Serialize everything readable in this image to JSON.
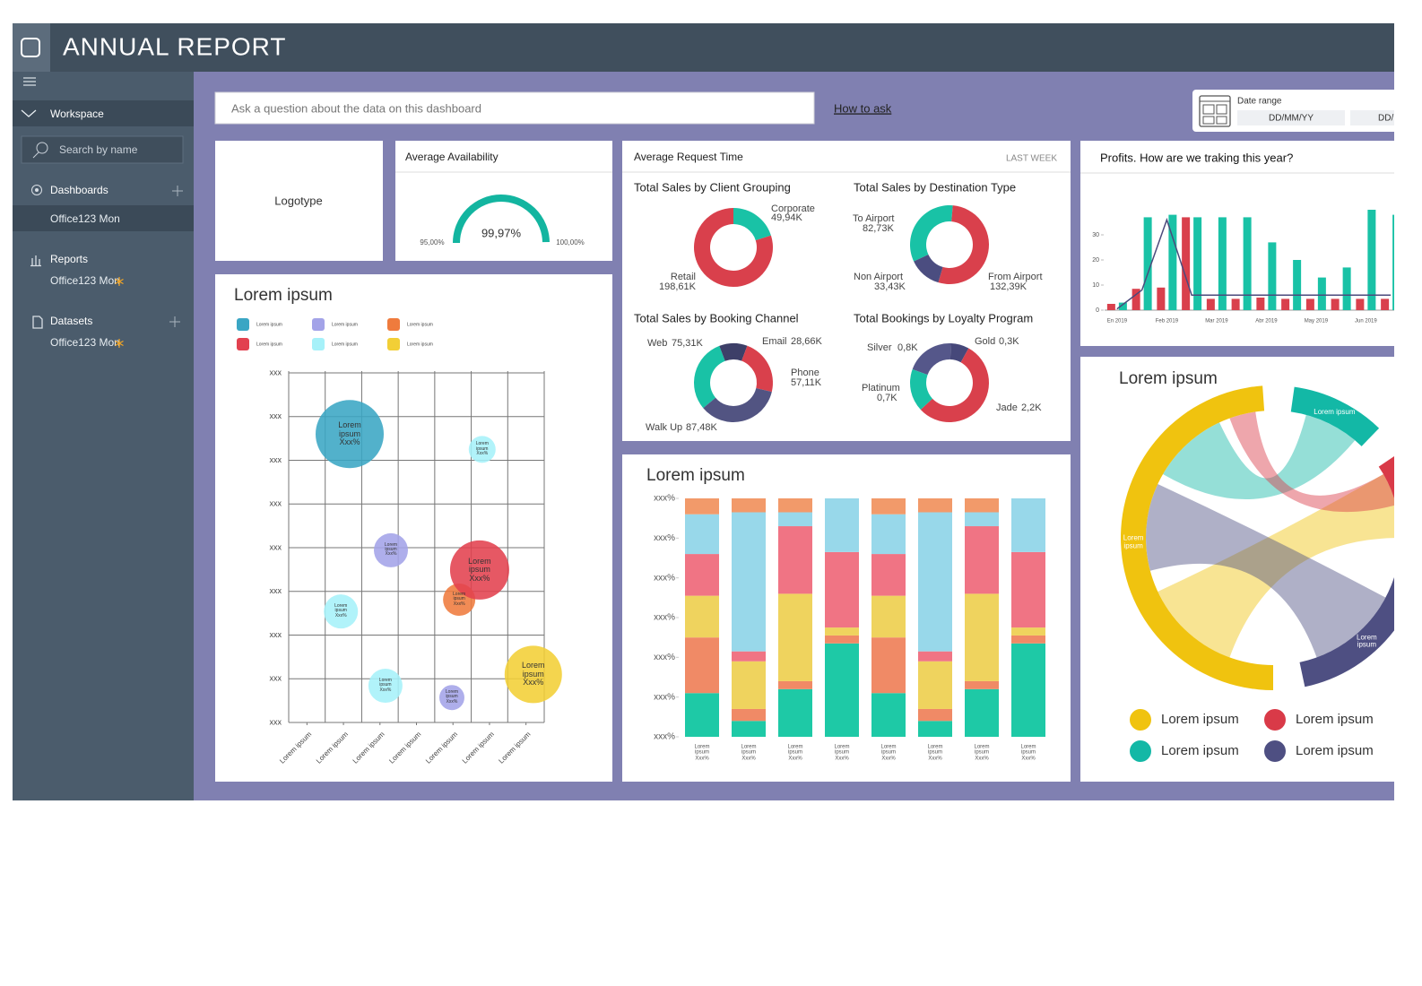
{
  "header": {
    "title": "ANNUAL REPORT"
  },
  "sidebar": {
    "section": "Workspace",
    "search_placeholder": "Search by name",
    "groups": [
      {
        "label": "Dashboards",
        "items": [
          "Office123 Mon"
        ]
      },
      {
        "label": "Reports",
        "items": [
          "Office123 Mon"
        ]
      },
      {
        "label": "Datasets",
        "items": [
          "Office123 Mon"
        ]
      }
    ]
  },
  "toolbar": {
    "question_placeholder": "Ask a question about the data on this dashboard",
    "help_link": "How to ask",
    "date_range": {
      "label": "Date range",
      "fields": [
        "DD/MM/YY",
        "DD/MM/YY"
      ]
    }
  },
  "logo_card": {
    "label": "Logotype"
  },
  "availability": {
    "type": "gauge",
    "title": "Average Availability",
    "value": 99.97,
    "value_label": "99,97%",
    "lim": [
      95,
      100
    ],
    "ticks": [
      {
        "value": 95,
        "label": "95,00%"
      },
      {
        "value": 100,
        "label": "100,00%"
      }
    ],
    "color": "#13b5a0"
  },
  "request_time": {
    "title": "Average Request Time",
    "period": "LAST WEEK",
    "charts": [
      {
        "type": "donut",
        "title": "Total Sales by Client Grouping",
        "categories": [
          "Corporate",
          "Retail"
        ],
        "values": [
          49.94,
          198.61
        ],
        "value_labels": [
          "49,94K",
          "198,61K"
        ],
        "colors": [
          "#19c2a6",
          "#d9404c"
        ]
      },
      {
        "type": "donut",
        "title": "Total Sales by Destination Type",
        "categories": [
          "To Airport",
          "From Airport",
          "Non Airport"
        ],
        "values": [
          82.73,
          132.39,
          33.43
        ],
        "value_labels": [
          "82,73K",
          "132,39K",
          "33,43K"
        ],
        "colors": [
          "#19c2a6",
          "#d9404c",
          "#4b4d80"
        ]
      },
      {
        "type": "donut",
        "title": "Total Sales by Booking Channel",
        "categories": [
          "Web",
          "Email",
          "Phone",
          "Walk Up"
        ],
        "values": [
          75.31,
          28.66,
          57.11,
          87.48
        ],
        "value_labels": [
          "75,31K",
          "28,66K",
          "57,11K",
          "87,48K"
        ],
        "colors": [
          "#19c2a6",
          "#3d3f68",
          "#d9404c",
          "#525482"
        ]
      },
      {
        "type": "donut",
        "title": "Total Bookings by Loyalty Program",
        "categories": [
          "Silver",
          "Gold",
          "Jade",
          "Platinum"
        ],
        "values": [
          0.8,
          0.3,
          2.2,
          0.7
        ],
        "value_labels": [
          "0,8K",
          "0,3K",
          "2,2K",
          "0,7K"
        ],
        "colors": [
          "#55578a",
          "#46487a",
          "#d9404c",
          "#19c2a6"
        ]
      }
    ]
  },
  "profits": {
    "type": "bar",
    "title": "Profits. How are we traking this year?",
    "categories": [
      "En 2019",
      null,
      "Feb 2019",
      null,
      "Mar 2019",
      null,
      "Abr 2019",
      null,
      "May 2019",
      null,
      "Jun 2019",
      null
    ],
    "series": [
      {
        "color": "#d9404c",
        "values": [
          2.5,
          8.5,
          9,
          37,
          4.5,
          4.5,
          5,
          4.5,
          4.5,
          4.5,
          4.5,
          4.5
        ]
      },
      {
        "color": "#19c2a6",
        "values": [
          3,
          37,
          38,
          37,
          37,
          37,
          27,
          20,
          13,
          17,
          40,
          38
        ]
      },
      {
        "type": "line",
        "color": "#4b4a7c",
        "values": [
          0.5,
          8,
          36,
          6,
          6,
          6,
          6,
          6,
          6,
          6,
          6,
          6
        ]
      }
    ],
    "ylim": [
      0,
      45
    ],
    "yticks": [
      0,
      10,
      20,
      30
    ]
  },
  "bubbles": {
    "type": "scatter",
    "title": "Lorem ipsum",
    "xlim": [
      0,
      7
    ],
    "ylim": [
      0,
      8
    ],
    "xgrid": [
      0,
      1,
      2,
      3,
      4,
      5,
      6,
      7
    ],
    "grid": true,
    "xticks": [
      {
        "value": 0.5,
        "label": "Lorem ipsum"
      },
      {
        "value": 1.5,
        "label": "Lorem ipsum"
      },
      {
        "value": 2.5,
        "label": "Lorem ipsum"
      },
      {
        "value": 3.5,
        "label": "Lorem ipsum"
      },
      {
        "value": 4.5,
        "label": "Lorem ipsum"
      },
      {
        "value": 5.5,
        "label": "Lorem ipsum"
      },
      {
        "value": 6.5,
        "label": "Lorem ipsum"
      }
    ],
    "yticks": [
      {
        "value": 0,
        "label": "xxx"
      },
      {
        "value": 1,
        "label": "xxx"
      },
      {
        "value": 2,
        "label": "xxx"
      },
      {
        "value": 3,
        "label": "xxx"
      },
      {
        "value": 4,
        "label": "xxx"
      },
      {
        "value": 5,
        "label": "xxx"
      },
      {
        "value": 6,
        "label": "xxx"
      },
      {
        "value": 7,
        "label": "xxx"
      },
      {
        "value": 8,
        "label": "xxx"
      }
    ],
    "series": [
      {
        "name": "Lorem ipsum",
        "color": "#3aa6c4",
        "x": [
          1.67
        ],
        "y": [
          6.6
        ],
        "sizes": [
          38
        ],
        "labels": [
          "Lorem\nipsum\nXxx%"
        ]
      },
      {
        "name": "Lorem ipsum",
        "color": "#a3a3e8",
        "x": [
          2.8,
          4.47
        ],
        "y": [
          3.94,
          0.57
        ],
        "sizes": [
          19,
          14
        ],
        "labels": [
          "Lorem\nipsum\nXxx%",
          "Lorem\nipsum\nXxx%"
        ]
      },
      {
        "name": "Lorem ipsum",
        "color": "#ef7b3d",
        "x": [
          4.67
        ],
        "y": [
          2.81
        ],
        "sizes": [
          18
        ],
        "labels": [
          "Lorem\nipsum\nXxx%"
        ]
      },
      {
        "name": "Lorem ipsum",
        "color": "#e2414f",
        "x": [
          5.23
        ],
        "y": [
          3.49
        ],
        "sizes": [
          33
        ],
        "labels": [
          "Lorem\nipsum\nXxx%"
        ]
      },
      {
        "name": "Lorem ipsum",
        "color": "#a6f1f9",
        "x": [
          5.3,
          1.43,
          2.65
        ],
        "y": [
          6.25,
          2.54,
          0.84
        ],
        "sizes": [
          15,
          19,
          19
        ],
        "labels": [
          "Lorem\nipsum\nXxx%",
          "Lorem\nipsum\nXxx%",
          "Lorem\nipsum\nXxx%"
        ]
      },
      {
        "name": "Lorem ipsum",
        "color": "#f2cf36",
        "x": [
          6.7
        ],
        "y": [
          1.1
        ],
        "sizes": [
          32
        ],
        "labels": [
          "Lorem\nipsum\nXxx%"
        ]
      }
    ]
  },
  "stacked": {
    "type": "stacked-bar",
    "title": "Lorem ipsum",
    "categories": [
      "Lorem\nipsum\nXxx%",
      "Lorem\nipsum\nXxx%",
      "Lorem\nipsum\nXxx%",
      "Lorem\nipsum\nXxx%",
      "Lorem\nipsum\nXxx%",
      "Lorem\nipsum\nXxx%",
      "Lorem\nipsum\nXxx%",
      "Lorem\nipsum\nXxx%"
    ],
    "ylim": [
      0,
      60
    ],
    "yticks": [
      {
        "value": 0,
        "label": "xxx%"
      },
      {
        "value": 10,
        "label": "xxx%"
      },
      {
        "value": 20,
        "label": "xxx%"
      },
      {
        "value": 30,
        "label": "xxx%"
      },
      {
        "value": 40,
        "label": "xxx%"
      },
      {
        "value": 50,
        "label": "xxx%"
      },
      {
        "value": 60,
        "label": "xxx%"
      }
    ],
    "series": [
      {
        "color": "#1ec9a6",
        "values": [
          11,
          4,
          12,
          23.5,
          11,
          4,
          12,
          23.5
        ]
      },
      {
        "color": "#f08a66",
        "values": [
          14,
          3,
          2,
          2,
          14,
          3,
          2,
          2
        ]
      },
      {
        "color": "#efd35e",
        "values": [
          10.5,
          12,
          22,
          2,
          10.5,
          12,
          22,
          2
        ]
      },
      {
        "color": "#f07484",
        "values": [
          10.5,
          2.5,
          17,
          19,
          10.5,
          2.5,
          17,
          19
        ]
      },
      {
        "color": "#98d8ea",
        "values": [
          10,
          35,
          3.5,
          13.5,
          10,
          35,
          3.5,
          13.5
        ]
      },
      {
        "color": "#f29a6a",
        "values": [
          4,
          3.5,
          3.5,
          0,
          4,
          3.5,
          3.5,
          0
        ]
      }
    ]
  },
  "chord": {
    "type": "chord",
    "title": "Lorem ipsum",
    "series": [
      {
        "name": "Lorem ipsum",
        "color": "#f0c30f",
        "value": 176,
        "label": "Lorem\nipsum"
      },
      {
        "name": "Lorem ipsum",
        "color": "#13b8a6",
        "value": 36,
        "label": "Lorem ipsum"
      },
      {
        "name": "Lorem ipsum",
        "color": "#d93a48",
        "value": 40,
        "label": "Lorem ipsum"
      },
      {
        "name": "Lorem ipsum",
        "color": "#4e4f82",
        "value": 60,
        "label": "Lorem ipsum"
      }
    ]
  }
}
